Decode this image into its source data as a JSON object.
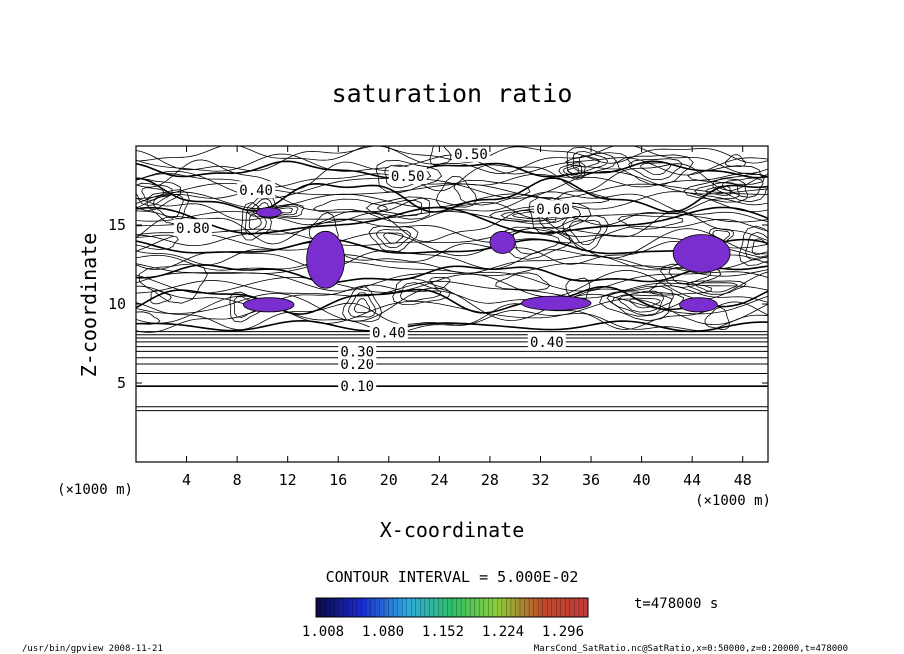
{
  "chart_data": {
    "type": "contour",
    "title": "saturation ratio",
    "xlabel": "X-coordinate",
    "ylabel": "Z-coordinate",
    "x_unit": "(×1000 m)",
    "z_unit": "(×1000 m)",
    "xlim": [
      0,
      50
    ],
    "ylim": [
      0,
      20
    ],
    "x_ticks": [
      4,
      8,
      12,
      16,
      20,
      24,
      28,
      32,
      36,
      40,
      44,
      48
    ],
    "y_ticks": [
      5,
      10,
      15
    ],
    "contour_interval_text": "CONTOUR INTERVAL = 5.000E-02",
    "time_text": "t=478000 s",
    "contour_labels": [
      {
        "text": "0.10",
        "x": 17.5,
        "y": 4.8
      },
      {
        "text": "0.20",
        "x": 17.5,
        "y": 6.2
      },
      {
        "text": "0.30",
        "x": 17.5,
        "y": 7.0
      },
      {
        "text": "0.40",
        "x": 32.5,
        "y": 7.6
      },
      {
        "text": "0.40",
        "x": 20.0,
        "y": 8.2
      },
      {
        "text": "0.50",
        "x": 26.5,
        "y": 19.5
      },
      {
        "text": "0.50",
        "x": 21.5,
        "y": 18.1
      },
      {
        "text": "0.40",
        "x": 9.5,
        "y": 17.2
      },
      {
        "text": "0.60",
        "x": 33.0,
        "y": 16.0
      },
      {
        "text": "0.80",
        "x": 4.5,
        "y": 14.8
      }
    ],
    "regions_above_1": [
      {
        "x": [
          8.5,
          12.5
        ],
        "y": [
          9.5,
          10.4
        ]
      },
      {
        "x": [
          13.5,
          16.5
        ],
        "y": [
          11.0,
          14.6
        ]
      },
      {
        "x": [
          9.5,
          11.5
        ],
        "y": [
          15.5,
          16.1
        ]
      },
      {
        "x": [
          28.0,
          30.0
        ],
        "y": [
          13.2,
          14.6
        ]
      },
      {
        "x": [
          30.5,
          36.0
        ],
        "y": [
          9.6,
          10.5
        ]
      },
      {
        "x": [
          42.5,
          47.0
        ],
        "y": [
          12.0,
          14.4
        ]
      },
      {
        "x": [
          43.0,
          46.0
        ],
        "y": [
          9.5,
          10.4
        ]
      }
    ],
    "colorbar": {
      "min": 1.008,
      "max": 1.296,
      "tick_labels": [
        "1.008",
        "1.080",
        "1.152",
        "1.224",
        "1.296"
      ],
      "colors": [
        "#0b0a45",
        "#1a2bd0",
        "#2fa8e0",
        "#2fbf6a",
        "#8fcf3a",
        "#c04a2a",
        "#c03a3a"
      ]
    },
    "fill_color": "#7a2ecf",
    "grid": false
  },
  "footer": {
    "left": "/usr/bin/gpview  2008-11-21",
    "right": "MarsCond_SatRatio.nc@SatRatio,x=0:50000,z=0:20000,t=478000"
  }
}
